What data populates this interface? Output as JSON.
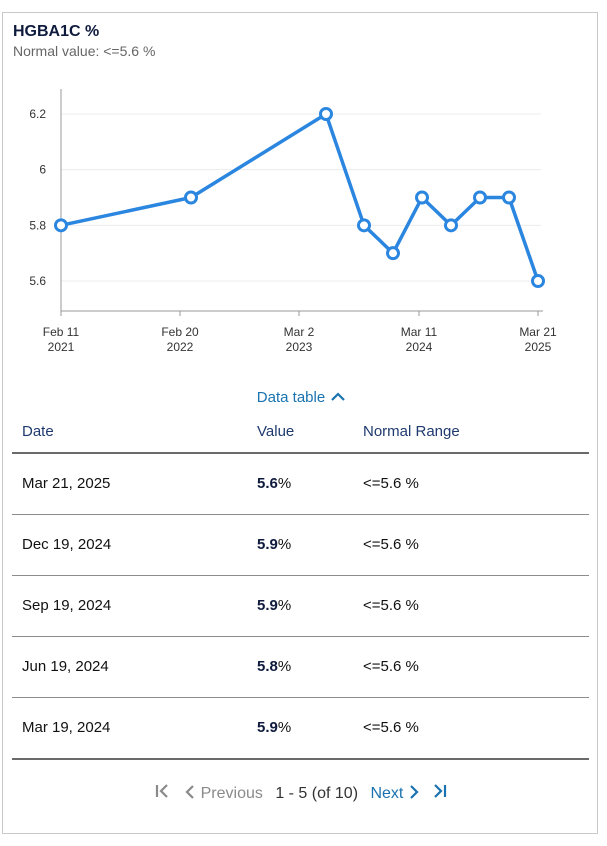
{
  "header": {
    "title": "HGBA1C %",
    "subtitle": "Normal value: <=5.6 %"
  },
  "chart_data": {
    "type": "line",
    "y_ticks": [
      "6.2",
      "6",
      "5.8",
      "5.6"
    ],
    "ylim": [
      5.5,
      6.3
    ],
    "x_ticks": [
      {
        "line1": "Feb 11",
        "line2": "2021"
      },
      {
        "line1": "Feb 20",
        "line2": "2022"
      },
      {
        "line1": "Mar 2",
        "line2": "2023"
      },
      {
        "line1": "Mar 11",
        "line2": "2024"
      },
      {
        "line1": "Mar 21",
        "line2": "2025"
      }
    ],
    "series": [
      {
        "color": "#2b86e0",
        "values": [
          5.8,
          5.9,
          6.2,
          5.8,
          5.7,
          5.9,
          5.8,
          5.9,
          5.9,
          5.6
        ]
      }
    ],
    "grid": true
  },
  "toggle": {
    "label": "Data table",
    "icon": "chevron-up-icon"
  },
  "table": {
    "headers": [
      "Date",
      "Value",
      "Normal Range"
    ],
    "rows": [
      {
        "date": "Mar 21, 2025",
        "value": "5.6",
        "unit": "%",
        "range": "<=5.6 %"
      },
      {
        "date": "Dec 19, 2024",
        "value": "5.9",
        "unit": "%",
        "range": "<=5.6 %"
      },
      {
        "date": "Sep 19, 2024",
        "value": "5.9",
        "unit": "%",
        "range": "<=5.6 %"
      },
      {
        "date": "Jun 19, 2024",
        "value": "5.8",
        "unit": "%",
        "range": "<=5.6 %"
      },
      {
        "date": "Mar 19, 2024",
        "value": "5.9",
        "unit": "%",
        "range": "<=5.6 %"
      }
    ]
  },
  "pagination": {
    "first_icon": "first-page-icon",
    "prev_label": "Previous",
    "info": "1 - 5 (of 10)",
    "next_label": "Next",
    "last_icon": "last-page-icon"
  }
}
